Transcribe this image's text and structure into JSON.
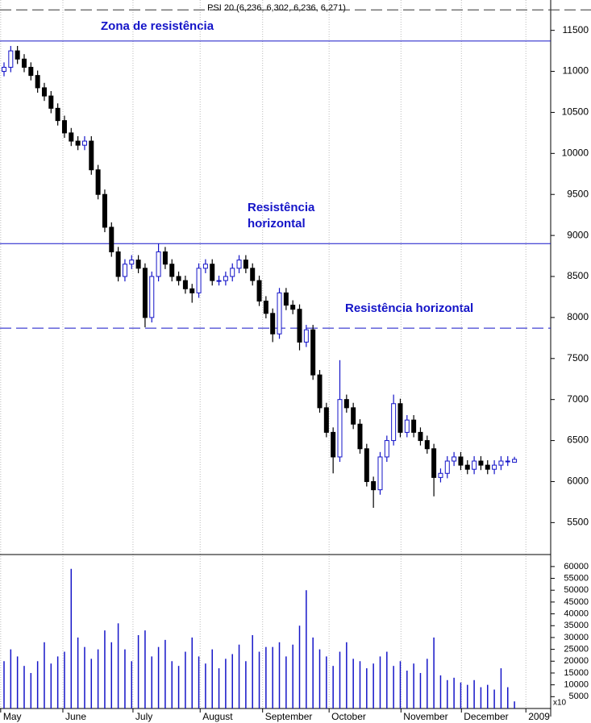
{
  "chart_data": {
    "type": "candlestick",
    "title": "PSI 20 (6,236, 6,302, 6,236, 6,271)",
    "annotations": [
      "Zona de resistência",
      "Resistência horizontal",
      "Resistência horizontal"
    ],
    "levels": [
      {
        "value": 11750,
        "style": "dashed",
        "color": "#333333"
      },
      {
        "value": 11370,
        "style": "solid",
        "color": "#1414c8"
      },
      {
        "value": 8900,
        "style": "solid",
        "color": "#1414c8"
      },
      {
        "value": 7870,
        "style": "dashed",
        "color": "#1414c8"
      }
    ],
    "open": [
      11000,
      11050,
      11250,
      11150,
      11050,
      10950,
      10800,
      10700,
      10550,
      10400,
      10250,
      10150,
      10100,
      10150,
      9800,
      9500,
      9100,
      8800,
      8500,
      8650,
      8700,
      8600,
      8000,
      8500,
      8800,
      8650,
      8500,
      8450,
      8350,
      8300,
      8600,
      8650,
      8450,
      8450,
      8500,
      8600,
      8700,
      8600,
      8450,
      8200,
      8050,
      7800,
      8300,
      8150,
      8100,
      7700,
      7850,
      7300,
      6900,
      6600,
      6300,
      7000,
      6900,
      6700,
      6400,
      6000,
      5900,
      6300,
      6500,
      6950,
      6600,
      6750,
      6600,
      6500,
      6400,
      6050,
      6100,
      6250,
      6300,
      6200,
      6150,
      6250,
      6200,
      6150,
      6200,
      6250,
      6236
    ],
    "high": [
      11110,
      11310,
      11310,
      11210,
      11110,
      11010,
      10860,
      10760,
      10610,
      10460,
      10310,
      10210,
      10210,
      10210,
      9860,
      9560,
      9160,
      8860,
      8710,
      8760,
      8760,
      8660,
      8560,
      8900,
      8860,
      8710,
      8560,
      8510,
      8410,
      8660,
      8710,
      8710,
      8510,
      8560,
      8660,
      8760,
      8760,
      8660,
      8510,
      8260,
      8110,
      8360,
      8360,
      8210,
      8160,
      7910,
      7910,
      7360,
      6960,
      6660,
      7480,
      7060,
      6960,
      6760,
      6460,
      6060,
      6360,
      6560,
      7060,
      7010,
      6810,
      6810,
      6660,
      6560,
      6460,
      6160,
      6310,
      6360,
      6360,
      6260,
      6310,
      6310,
      6260,
      6260,
      6310,
      6310,
      6302
    ],
    "low": [
      10940,
      10990,
      11090,
      10990,
      10890,
      10740,
      10640,
      10490,
      10340,
      10190,
      10090,
      10040,
      10040,
      9740,
      9440,
      9040,
      8740,
      8440,
      8440,
      8590,
      8540,
      7880,
      7940,
      8440,
      8590,
      8440,
      8390,
      8290,
      8180,
      8240,
      8540,
      8390,
      8390,
      8390,
      8440,
      8540,
      8540,
      8390,
      8140,
      7990,
      7700,
      7740,
      8090,
      8040,
      7600,
      7640,
      7240,
      6840,
      6540,
      6100,
      6240,
      6840,
      6640,
      6340,
      5940,
      5680,
      5840,
      6240,
      6440,
      6540,
      6540,
      6540,
      6440,
      6340,
      5820,
      5990,
      6040,
      6190,
      6140,
      6090,
      6090,
      6140,
      6090,
      6090,
      6140,
      6190,
      6236
    ],
    "close": [
      11050,
      11250,
      11150,
      11050,
      10950,
      10800,
      10700,
      10550,
      10400,
      10250,
      10150,
      10100,
      10150,
      9800,
      9500,
      9100,
      8800,
      8500,
      8650,
      8700,
      8600,
      8000,
      8500,
      8800,
      8650,
      8500,
      8450,
      8350,
      8300,
      8600,
      8650,
      8450,
      8450,
      8500,
      8600,
      8700,
      8600,
      8450,
      8200,
      8050,
      7800,
      8300,
      8150,
      8100,
      7700,
      7850,
      7300,
      6900,
      6600,
      6300,
      7000,
      6900,
      6700,
      6400,
      6000,
      5900,
      6300,
      6500,
      6950,
      6600,
      6750,
      6600,
      6500,
      6400,
      6050,
      6100,
      6250,
      6300,
      6200,
      6150,
      6250,
      6200,
      6150,
      6200,
      6250,
      6250,
      6271
    ],
    "volume": [
      20000,
      25000,
      22000,
      18000,
      15000,
      20000,
      28000,
      19000,
      22000,
      24000,
      59000,
      30000,
      26000,
      21000,
      25000,
      33000,
      28000,
      36000,
      25000,
      20000,
      31000,
      33000,
      22000,
      26000,
      29000,
      20000,
      18000,
      24000,
      30000,
      22000,
      19000,
      25000,
      17000,
      21000,
      23000,
      27000,
      20000,
      31000,
      24000,
      26000,
      26000,
      28000,
      22000,
      27000,
      35000,
      50000,
      30000,
      25000,
      22000,
      18000,
      24000,
      28000,
      21000,
      20000,
      17000,
      19000,
      22000,
      24000,
      18000,
      20000,
      16000,
      19000,
      15000,
      21000,
      30000,
      14000,
      12000,
      13000,
      11000,
      10000,
      12000,
      9000,
      10000,
      8000,
      17000,
      9000,
      3000
    ],
    "up_color": "#1414c8",
    "down_color": "#000000",
    "volume_color": "#1414c8",
    "xlim": [
      -0.6,
      81.4
    ],
    "xticks": [
      {
        "value": -0.5,
        "label": "May"
      },
      {
        "value": 8.76,
        "label": "June"
      },
      {
        "value": 19.2,
        "label": "July"
      },
      {
        "value": 29.2,
        "label": "August"
      },
      {
        "value": 38.5,
        "label": "September"
      },
      {
        "value": 48.4,
        "label": "October"
      },
      {
        "value": 59.1,
        "label": "November"
      },
      {
        "value": 68.1,
        "label": "December"
      },
      {
        "value": 77.7,
        "label": "2009"
      }
    ],
    "ylim": [
      5140,
      11870
    ],
    "yticks": [
      5500,
      6000,
      6500,
      7000,
      7500,
      8000,
      8500,
      9000,
      9500,
      10000,
      10500,
      11000,
      11500
    ],
    "volume_ylim": [
      0,
      62000
    ],
    "volume_yticks": [
      5000,
      10000,
      15000,
      20000,
      25000,
      30000,
      35000,
      40000,
      45000,
      50000,
      55000,
      60000
    ],
    "volume_multiplier_label": "x10",
    "grid": true
  }
}
